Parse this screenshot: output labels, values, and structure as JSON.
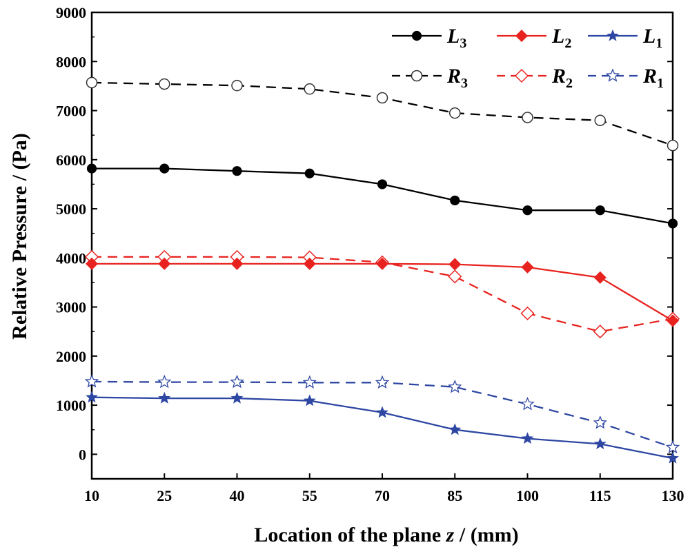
{
  "chart_data": {
    "type": "line",
    "xlabel_prefix": "Location of the plane ",
    "xlabel_var": "z",
    "xlabel_suffix": " / (mm)",
    "ylabel": "Relative Pressure / (Pa)",
    "x": [
      10,
      25,
      40,
      55,
      70,
      85,
      100,
      115,
      130
    ],
    "xticks": [
      "10",
      "25",
      "40",
      "55",
      "70",
      "85",
      "100",
      "115",
      "130"
    ],
    "yticks": [
      "0",
      "1000",
      "2000",
      "3000",
      "4000",
      "5000",
      "6000",
      "7000",
      "8000",
      "9000"
    ],
    "xlim": [
      10,
      130
    ],
    "ylim": [
      -500,
      9000
    ],
    "series": [
      {
        "name": "L",
        "sub": "3",
        "color": "#000000",
        "dash": "solid",
        "marker": "circle-filled",
        "values": [
          5820,
          5820,
          5770,
          5720,
          5500,
          5170,
          4970,
          4970,
          4700
        ]
      },
      {
        "name": "L",
        "sub": "2",
        "color": "#e8231f",
        "dash": "solid",
        "marker": "diamond-filled",
        "values": [
          3880,
          3880,
          3880,
          3880,
          3880,
          3870,
          3810,
          3600,
          2720
        ]
      },
      {
        "name": "L",
        "sub": "1",
        "color": "#2e47a3",
        "dash": "solid",
        "marker": "star-filled",
        "values": [
          1160,
          1140,
          1140,
          1090,
          850,
          500,
          320,
          210,
          -80
        ]
      },
      {
        "name": "R",
        "sub": "3",
        "color": "#000000",
        "dash": "dashed",
        "marker": "circle-open",
        "values": [
          7570,
          7540,
          7510,
          7440,
          7260,
          6950,
          6860,
          6800,
          6290
        ]
      },
      {
        "name": "R",
        "sub": "2",
        "color": "#e8231f",
        "dash": "dashed",
        "marker": "diamond-open",
        "values": [
          4020,
          4020,
          4020,
          4010,
          3910,
          3620,
          2870,
          2500,
          2760
        ]
      },
      {
        "name": "R",
        "sub": "1",
        "color": "#2e47a3",
        "dash": "dashed",
        "marker": "star-open",
        "values": [
          1480,
          1470,
          1470,
          1460,
          1460,
          1370,
          1020,
          640,
          140
        ]
      }
    ],
    "legend_position": "top-right",
    "grid": false
  }
}
